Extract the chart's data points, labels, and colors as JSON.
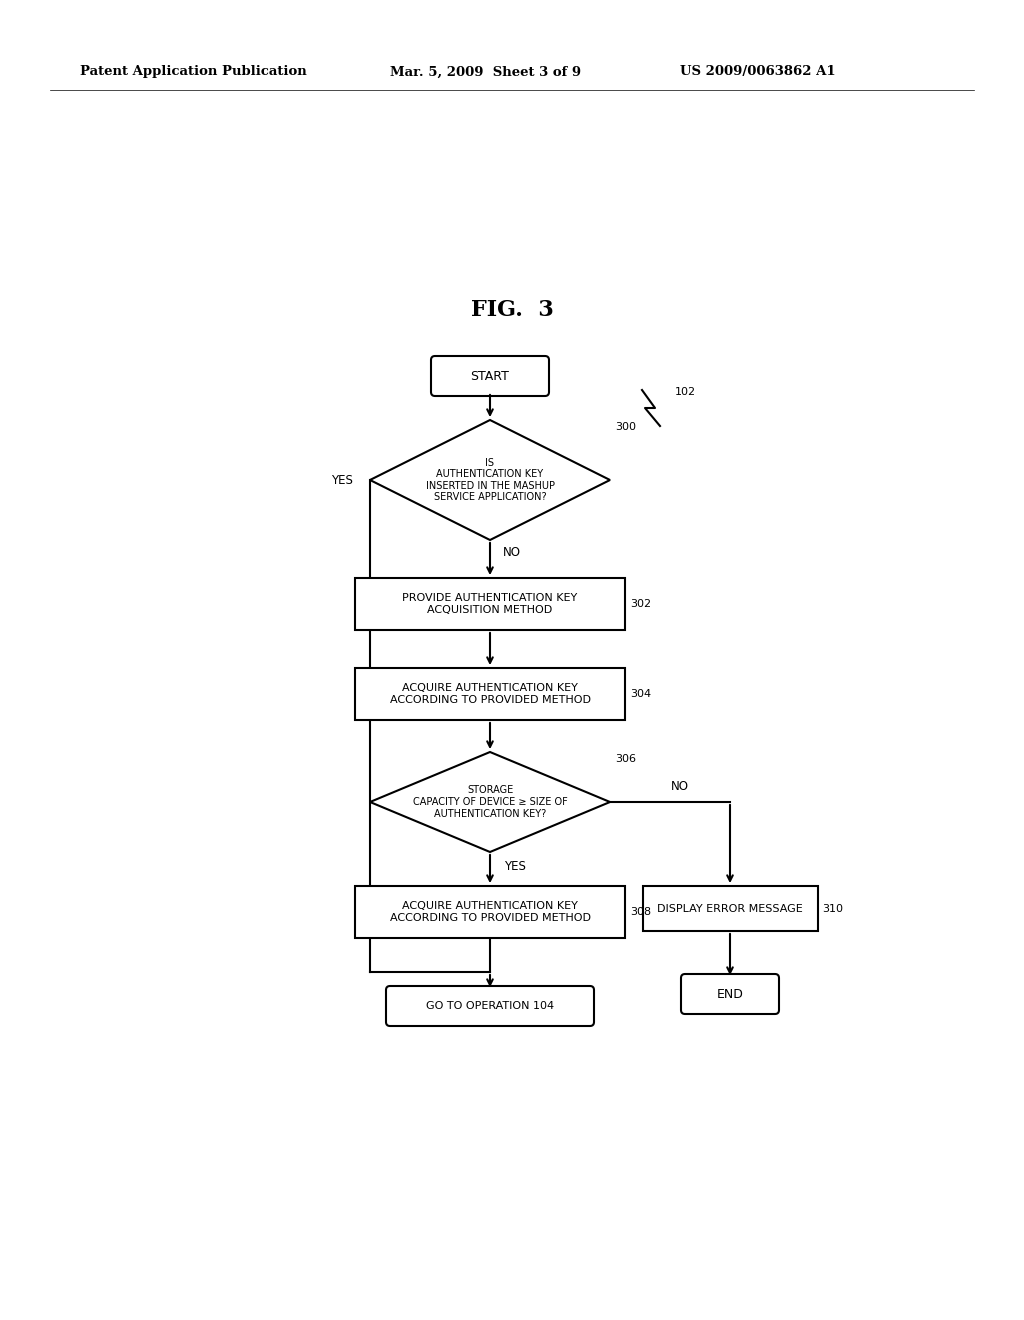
{
  "title": "FIG.  3",
  "header_left": "Patent Application Publication",
  "header_mid": "Mar. 5, 2009  Sheet 3 of 9",
  "header_right": "US 2009/0063862 A1",
  "bg_color": "#ffffff",
  "start_label": "START",
  "d300_label": "IS\nAUTHENTICATION KEY\nINSERTED IN THE MASHUP\nSERVICE APPLICATION?",
  "d300_ref": "300",
  "b302_label": "PROVIDE AUTHENTICATION KEY\nACQUISITION METHOD",
  "b302_ref": "302",
  "b304_label": "ACQUIRE AUTHENTICATION KEY\nACCORDING TO PROVIDED METHOD",
  "b304_ref": "304",
  "d306_label": "STORAGE\nCAPACITY OF DEVICE ≥ SIZE OF\nAUTHENTICATION KEY?",
  "d306_ref": "306",
  "b308_label": "ACQUIRE AUTHENTICATION KEY\nACCORDING TO PROVIDED METHOD",
  "b308_ref": "308",
  "b310_label": "DISPLAY ERROR MESSAGE",
  "b310_ref": "310",
  "end_label": "END",
  "goto_label": "GO TO OPERATION 104",
  "ref102": "102",
  "yes_label": "YES",
  "no_label": "NO"
}
